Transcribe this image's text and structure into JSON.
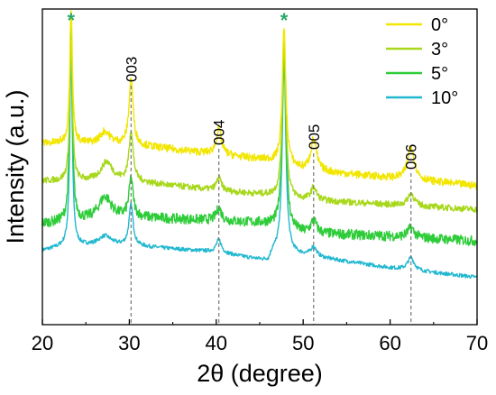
{
  "chart_data": {
    "type": "line",
    "title": "",
    "xlabel": "2θ (degree)",
    "ylabel": "Intensity (a.u.)",
    "xlim": [
      20,
      70
    ],
    "ylim": [
      0,
      100
    ],
    "x_ticks": [
      "20",
      "30",
      "40",
      "50",
      "60",
      "70"
    ],
    "y_ticks_visible": false,
    "grid": false,
    "legend_position": "top-right",
    "peak_labels": [
      {
        "x": 30.2,
        "text": "003"
      },
      {
        "x": 40.3,
        "text": "004"
      },
      {
        "x": 51.2,
        "text": "005"
      },
      {
        "x": 62.4,
        "text": "006"
      }
    ],
    "star_markers": [
      {
        "x": 23.3,
        "text": "*"
      },
      {
        "x": 47.8,
        "text": "*"
      }
    ],
    "series": [
      {
        "name": "0°",
        "color": "#f2e600",
        "baseline": [
          [
            20,
            57.5
          ],
          [
            30,
            57.0
          ],
          [
            40,
            54.0
          ],
          [
            46,
            52.0
          ],
          [
            50,
            49.0
          ],
          [
            60,
            46.5
          ],
          [
            70,
            44.0
          ]
        ],
        "noise": 1.2,
        "peaks": [
          [
            23.3,
            43,
            0.18
          ],
          [
            27.2,
            4,
            0.7
          ],
          [
            30.2,
            21,
            0.28
          ],
          [
            40.3,
            8,
            0.35
          ],
          [
            47.8,
            43,
            0.25
          ],
          [
            51.2,
            10,
            0.4
          ],
          [
            62.4,
            11,
            0.45
          ]
        ]
      },
      {
        "name": "3°",
        "color": "#a8d81c",
        "baseline": [
          [
            20,
            45.5
          ],
          [
            30,
            45.5
          ],
          [
            40,
            42.5
          ],
          [
            46,
            41.0
          ],
          [
            50,
            39.5
          ],
          [
            60,
            38.0
          ],
          [
            70,
            36.5
          ]
        ],
        "noise": 1.0,
        "peaks": [
          [
            23.3,
            45,
            0.18
          ],
          [
            27.4,
            6,
            0.8
          ],
          [
            30.2,
            16,
            0.28
          ],
          [
            40.3,
            4,
            0.35
          ],
          [
            47.8,
            49,
            0.25
          ],
          [
            51.2,
            4,
            0.4
          ],
          [
            62.4,
            4,
            0.45
          ]
        ]
      },
      {
        "name": "5°",
        "color": "#2fcc3a",
        "baseline": [
          [
            20,
            32.0
          ],
          [
            30,
            34.0
          ],
          [
            40,
            33.0
          ],
          [
            46,
            32.0
          ],
          [
            50,
            29.0
          ],
          [
            60,
            28.0
          ],
          [
            70,
            26.5
          ]
        ],
        "noise": 1.6,
        "peaks": [
          [
            23.3,
            62,
            0.18
          ],
          [
            27.2,
            7,
            0.9
          ],
          [
            30.2,
            12,
            0.28
          ],
          [
            40.3,
            4,
            0.35
          ],
          [
            47.8,
            58,
            0.25
          ],
          [
            51.2,
            4,
            0.4
          ],
          [
            62.4,
            3,
            0.45
          ]
        ]
      },
      {
        "name": "10°",
        "color": "#22b8d0",
        "baseline": [
          [
            20,
            23.5
          ],
          [
            23,
            25.0
          ],
          [
            30,
            25.0
          ],
          [
            40,
            23.0
          ],
          [
            46,
            20.0
          ],
          [
            46.5,
            23.0
          ],
          [
            50,
            22.0
          ],
          [
            60,
            18.0
          ],
          [
            70,
            15.0
          ]
        ],
        "noise": 0.6,
        "peaks": [
          [
            23.3,
            60,
            0.18
          ],
          [
            27.2,
            3,
            0.9
          ],
          [
            30.2,
            13,
            0.28
          ],
          [
            40.3,
            4,
            0.35
          ],
          [
            47.8,
            61,
            0.25
          ],
          [
            51.2,
            3,
            0.4
          ],
          [
            62.4,
            4,
            0.45
          ]
        ]
      }
    ]
  }
}
